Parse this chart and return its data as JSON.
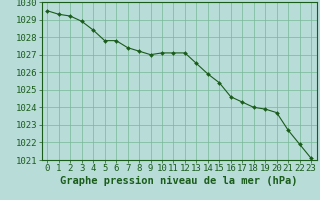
{
  "x": [
    0,
    1,
    2,
    3,
    4,
    5,
    6,
    7,
    8,
    9,
    10,
    11,
    12,
    13,
    14,
    15,
    16,
    17,
    18,
    19,
    20,
    21,
    22,
    23
  ],
  "y": [
    1029.5,
    1029.3,
    1029.2,
    1028.9,
    1028.4,
    1027.8,
    1027.8,
    1027.4,
    1027.2,
    1027.0,
    1027.1,
    1027.1,
    1027.1,
    1026.5,
    1025.9,
    1025.4,
    1024.6,
    1024.3,
    1024.0,
    1023.9,
    1023.7,
    1022.7,
    1021.9,
    1021.1
  ],
  "line_color": "#1a5c1a",
  "marker_color": "#1a5c1a",
  "bg_color": "#b8dcd8",
  "grid_color": "#76b896",
  "tick_label_color": "#1a5c1a",
  "xlabel": "Graphe pression niveau de la mer (hPa)",
  "xlabel_color": "#1a5c1a",
  "ylim": [
    1021,
    1030
  ],
  "yticks": [
    1021,
    1022,
    1023,
    1024,
    1025,
    1026,
    1027,
    1028,
    1029,
    1030
  ],
  "xticks": [
    0,
    1,
    2,
    3,
    4,
    5,
    6,
    7,
    8,
    9,
    10,
    11,
    12,
    13,
    14,
    15,
    16,
    17,
    18,
    19,
    20,
    21,
    22,
    23
  ],
  "font_size": 6.5,
  "xlabel_font_size": 7.5
}
